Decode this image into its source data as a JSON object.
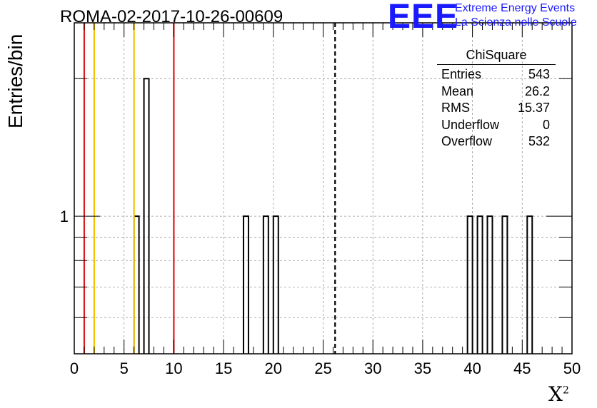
{
  "header": {
    "run_title": "ROMA-02-2017-10-26-00609",
    "logo_mark": "EEE",
    "logo_line1": "Extreme Energy Events",
    "logo_line2": "La Scienza nelle Scuole"
  },
  "stats_box": {
    "title": "ChiSquare",
    "rows": [
      {
        "label": "Entries",
        "value": "543"
      },
      {
        "label": "Mean",
        "value": "26.2"
      },
      {
        "label": "RMS",
        "value": "15.37"
      },
      {
        "label": "Underflow",
        "value": "0"
      },
      {
        "label": "Overflow",
        "value": "532"
      }
    ]
  },
  "chart_data": {
    "type": "bar",
    "title": "ROMA-02-2017-10-26-00609",
    "xlabel": "X",
    "xlabel_superscript": "2",
    "ylabel": "Entries/bin",
    "xlim": [
      0,
      50
    ],
    "ylim_log": [
      0.5,
      2.65
    ],
    "yscale": "log",
    "grid": true,
    "x_ticks": [
      "0",
      "5",
      "10",
      "15",
      "20",
      "25",
      "30",
      "35",
      "40",
      "45",
      "50"
    ],
    "y_tick_labels": [
      "1"
    ],
    "bin_width": 0.5,
    "bins": [
      {
        "x": 6.25,
        "value": 1
      },
      {
        "x": 7.25,
        "value": 2
      },
      {
        "x": 17.25,
        "value": 1
      },
      {
        "x": 19.25,
        "value": 1
      },
      {
        "x": 20.25,
        "value": 1
      },
      {
        "x": 39.75,
        "value": 1
      },
      {
        "x": 40.75,
        "value": 1
      },
      {
        "x": 41.75,
        "value": 1
      },
      {
        "x": 43.25,
        "value": 1
      },
      {
        "x": 45.75,
        "value": 1
      }
    ],
    "reference_lines": [
      {
        "x": 1,
        "color": "#dd1a1a"
      },
      {
        "x": 2,
        "color": "#f5c000"
      },
      {
        "x": 6,
        "color": "#f5c000"
      },
      {
        "x": 10,
        "color": "#dd1a1a"
      }
    ],
    "mean_line": {
      "x": 26.2,
      "style": "dashed",
      "color": "#000000"
    }
  }
}
